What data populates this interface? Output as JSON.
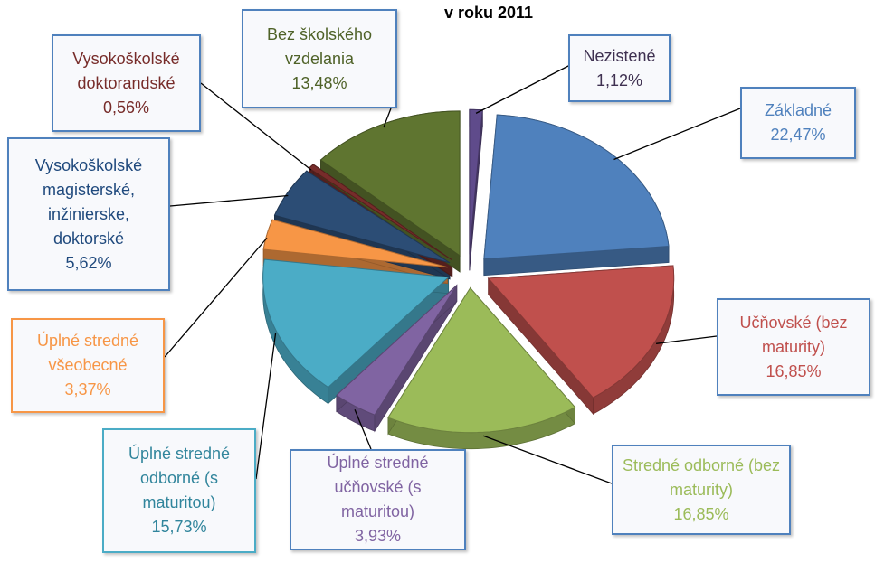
{
  "chart_data": {
    "type": "pie",
    "title": "v roku 2011",
    "categories": [
      "Nezistené",
      "Základné",
      "Učňovské (bez maturity)",
      "Stredné odborné (bez maturity)",
      "Úplné stredné učňovské (s maturitou)",
      "Úplné stredné odborné (s maturitou)",
      "Úplné stredné všeobecné",
      "Vysokoškolské magisterské, inžinierske, doktorské",
      "Vysokoškolské doktorandské",
      "Bez školského vzdelania"
    ],
    "values": [
      1.12,
      22.47,
      16.85,
      16.85,
      3.93,
      15.73,
      3.37,
      5.62,
      0.56,
      13.48
    ],
    "value_labels": [
      "1,12%",
      "22,47%",
      "16,85%",
      "16,85%",
      "3,93%",
      "15,73%",
      "3,37%",
      "5,62%",
      "0,56%",
      "13,48%"
    ],
    "colors": [
      "#5f4b8b",
      "#4f81bd",
      "#c0504d",
      "#9bbb59",
      "#8064a2",
      "#4bacc6",
      "#f79646",
      "#2c4d75",
      "#772c2a",
      "#5f7530"
    ]
  }
}
